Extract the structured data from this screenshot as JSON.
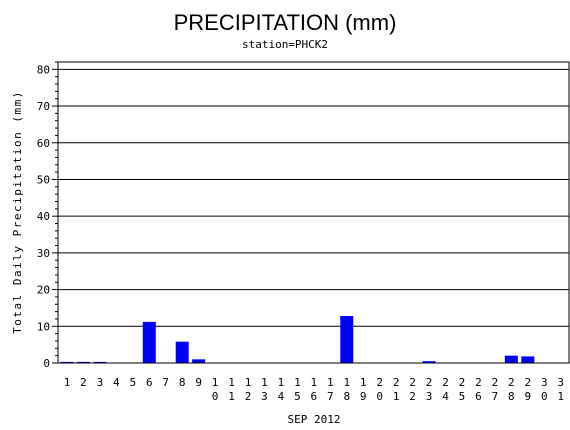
{
  "chart_data": {
    "type": "bar",
    "title": "PRECIPITATION (mm)",
    "subtitle": "station=PHCK2",
    "xlabel": "SEP 2012",
    "ylabel": "Total Daily Precipitation (mm)",
    "ylim": [
      0,
      82
    ],
    "yticks": [
      0,
      10,
      20,
      30,
      40,
      50,
      60,
      70,
      80
    ],
    "grid": true,
    "bar_color": "#0000ff",
    "categories": [
      "1",
      "2",
      "3",
      "4",
      "5",
      "6",
      "7",
      "8",
      "9",
      "10",
      "11",
      "12",
      "13",
      "14",
      "15",
      "16",
      "17",
      "18",
      "19",
      "20",
      "21",
      "22",
      "23",
      "24",
      "25",
      "26",
      "27",
      "28",
      "29",
      "30",
      "31"
    ],
    "values": [
      0.3,
      0.3,
      0.3,
      0,
      0,
      11.2,
      0,
      5.8,
      1.0,
      0,
      0,
      0,
      0,
      0,
      0,
      0,
      0,
      12.8,
      0,
      0,
      0,
      0,
      0.5,
      0,
      0,
      0,
      0,
      2.0,
      1.8,
      0,
      0
    ]
  }
}
